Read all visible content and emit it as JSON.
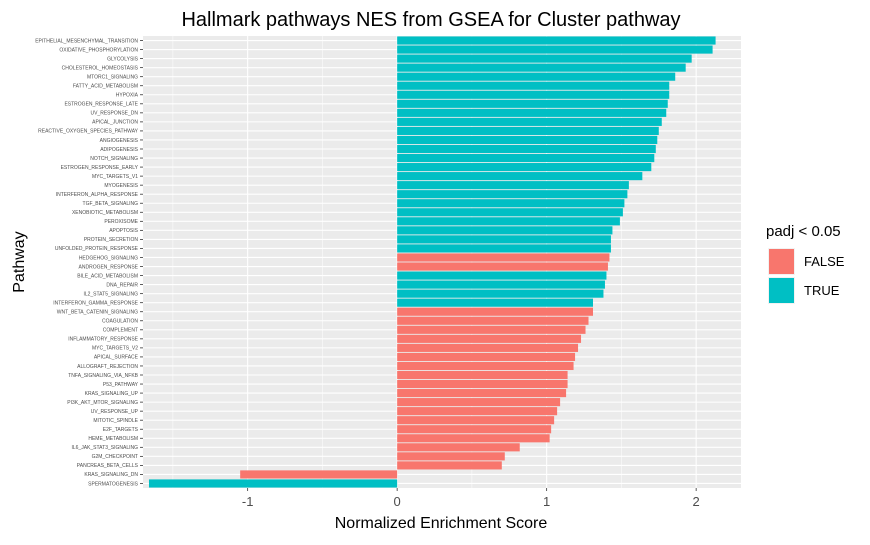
{
  "chart_data": {
    "type": "bar",
    "orientation": "horizontal",
    "title": "Hallmark pathways NES from GSEA for Cluster pathway",
    "xlabel": "Normalized Enrichment Score",
    "ylabel": "Pathway",
    "xlim": [
      -1.7,
      2.3
    ],
    "xticks": [
      "-1",
      "0",
      "1",
      "2"
    ],
    "xtick_values": [
      -1,
      0,
      1,
      2
    ],
    "grid": true,
    "legend": {
      "title": "padj < 0.05",
      "position": "right",
      "entries": [
        {
          "label": "FALSE",
          "color": "#F8766D"
        },
        {
          "label": "TRUE",
          "color": "#00BFC4"
        }
      ]
    },
    "colors": {
      "FALSE": "#F8766D",
      "TRUE": "#00BFC4",
      "panel": "#EBEBEB",
      "grid": "#FFFFFF"
    },
    "bars": [
      {
        "pathway": "EPITHELIAL_MESENCHYMAL_TRANSITION",
        "nes": 2.13,
        "padj_sig": "TRUE"
      },
      {
        "pathway": "OXIDATIVE_PHOSPHORYLATION",
        "nes": 2.11,
        "padj_sig": "TRUE"
      },
      {
        "pathway": "GLYCOLYSIS",
        "nes": 1.97,
        "padj_sig": "TRUE"
      },
      {
        "pathway": "CHOLESTEROL_HOMEOSTASIS",
        "nes": 1.93,
        "padj_sig": "TRUE"
      },
      {
        "pathway": "MTORC1_SIGNALING",
        "nes": 1.86,
        "padj_sig": "TRUE"
      },
      {
        "pathway": "FATTY_ACID_METABOLISM",
        "nes": 1.82,
        "padj_sig": "TRUE"
      },
      {
        "pathway": "HYPOXIA",
        "nes": 1.82,
        "padj_sig": "TRUE"
      },
      {
        "pathway": "ESTROGEN_RESPONSE_LATE",
        "nes": 1.81,
        "padj_sig": "TRUE"
      },
      {
        "pathway": "UV_RESPONSE_DN",
        "nes": 1.8,
        "padj_sig": "TRUE"
      },
      {
        "pathway": "APICAL_JUNCTION",
        "nes": 1.77,
        "padj_sig": "TRUE"
      },
      {
        "pathway": "REACTIVE_OXYGEN_SPECIES_PATHWAY",
        "nes": 1.75,
        "padj_sig": "TRUE"
      },
      {
        "pathway": "ANGIOGENESIS",
        "nes": 1.74,
        "padj_sig": "TRUE"
      },
      {
        "pathway": "ADIPOGENESIS",
        "nes": 1.73,
        "padj_sig": "TRUE"
      },
      {
        "pathway": "NOTCH_SIGNALING",
        "nes": 1.72,
        "padj_sig": "TRUE"
      },
      {
        "pathway": "ESTROGEN_RESPONSE_EARLY",
        "nes": 1.7,
        "padj_sig": "TRUE"
      },
      {
        "pathway": "MYC_TARGETS_V1",
        "nes": 1.64,
        "padj_sig": "TRUE"
      },
      {
        "pathway": "MYOGENESIS",
        "nes": 1.55,
        "padj_sig": "TRUE"
      },
      {
        "pathway": "INTERFERON_ALPHA_RESPONSE",
        "nes": 1.54,
        "padj_sig": "TRUE"
      },
      {
        "pathway": "TGF_BETA_SIGNALING",
        "nes": 1.52,
        "padj_sig": "TRUE"
      },
      {
        "pathway": "XENOBIOTIC_METABOLISM",
        "nes": 1.51,
        "padj_sig": "TRUE"
      },
      {
        "pathway": "PEROXISOME",
        "nes": 1.49,
        "padj_sig": "TRUE"
      },
      {
        "pathway": "APOPTOSIS",
        "nes": 1.44,
        "padj_sig": "TRUE"
      },
      {
        "pathway": "PROTEIN_SECRETION",
        "nes": 1.43,
        "padj_sig": "TRUE"
      },
      {
        "pathway": "UNFOLDED_PROTEIN_RESPONSE",
        "nes": 1.43,
        "padj_sig": "TRUE"
      },
      {
        "pathway": "HEDGEHOG_SIGNALING",
        "nes": 1.42,
        "padj_sig": "FALSE"
      },
      {
        "pathway": "ANDROGEN_RESPONSE",
        "nes": 1.41,
        "padj_sig": "FALSE"
      },
      {
        "pathway": "BILE_ACID_METABOLISM",
        "nes": 1.4,
        "padj_sig": "TRUE"
      },
      {
        "pathway": "DNA_REPAIR",
        "nes": 1.39,
        "padj_sig": "TRUE"
      },
      {
        "pathway": "IL2_STAT5_SIGNALING",
        "nes": 1.38,
        "padj_sig": "TRUE"
      },
      {
        "pathway": "INTERFERON_GAMMA_RESPONSE",
        "nes": 1.31,
        "padj_sig": "TRUE"
      },
      {
        "pathway": "WNT_BETA_CATENIN_SIGNALING",
        "nes": 1.31,
        "padj_sig": "FALSE"
      },
      {
        "pathway": "COAGULATION",
        "nes": 1.28,
        "padj_sig": "FALSE"
      },
      {
        "pathway": "COMPLEMENT",
        "nes": 1.26,
        "padj_sig": "FALSE"
      },
      {
        "pathway": "INFLAMMATORY_RESPONSE",
        "nes": 1.23,
        "padj_sig": "FALSE"
      },
      {
        "pathway": "MYC_TARGETS_V2",
        "nes": 1.21,
        "padj_sig": "FALSE"
      },
      {
        "pathway": "APICAL_SURFACE",
        "nes": 1.19,
        "padj_sig": "FALSE"
      },
      {
        "pathway": "ALLOGRAFT_REJECTION",
        "nes": 1.18,
        "padj_sig": "FALSE"
      },
      {
        "pathway": "TNFA_SIGNALING_VIA_NFKB",
        "nes": 1.14,
        "padj_sig": "FALSE"
      },
      {
        "pathway": "P53_PATHWAY",
        "nes": 1.14,
        "padj_sig": "FALSE"
      },
      {
        "pathway": "KRAS_SIGNALING_UP",
        "nes": 1.13,
        "padj_sig": "FALSE"
      },
      {
        "pathway": "PI3K_AKT_MTOR_SIGNALING",
        "nes": 1.09,
        "padj_sig": "FALSE"
      },
      {
        "pathway": "UV_RESPONSE_UP",
        "nes": 1.07,
        "padj_sig": "FALSE"
      },
      {
        "pathway": "MITOTIC_SPINDLE",
        "nes": 1.05,
        "padj_sig": "FALSE"
      },
      {
        "pathway": "E2F_TARGETS",
        "nes": 1.03,
        "padj_sig": "FALSE"
      },
      {
        "pathway": "HEME_METABOLISM",
        "nes": 1.02,
        "padj_sig": "FALSE"
      },
      {
        "pathway": "IL6_JAK_STAT3_SIGNALING",
        "nes": 0.82,
        "padj_sig": "FALSE"
      },
      {
        "pathway": "G2M_CHECKPOINT",
        "nes": 0.72,
        "padj_sig": "FALSE"
      },
      {
        "pathway": "PANCREAS_BETA_CELLS",
        "nes": 0.7,
        "padj_sig": "FALSE"
      },
      {
        "pathway": "KRAS_SIGNALING_DN",
        "nes": -1.05,
        "padj_sig": "FALSE"
      },
      {
        "pathway": "SPERMATOGENESIS",
        "nes": -1.66,
        "padj_sig": "TRUE"
      }
    ]
  }
}
